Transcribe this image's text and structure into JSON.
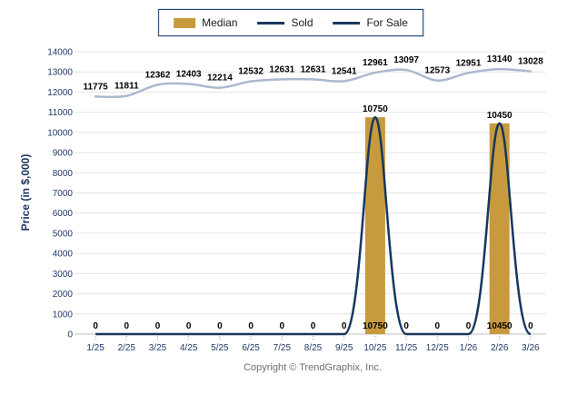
{
  "legend": {
    "items": [
      {
        "label": "Median",
        "swatch": "bar",
        "color": "#c79b3d"
      },
      {
        "label": "Sold",
        "swatch": "line",
        "color": "#17375e"
      },
      {
        "label": "For Sale",
        "swatch": "line",
        "color": "#adb8ce"
      }
    ]
  },
  "footer": {
    "copyright": "Copyright © TrendGraphix, Inc."
  },
  "chart_data": {
    "type": "combo",
    "categories": [
      "1/25",
      "2/25",
      "3/25",
      "4/25",
      "5/25",
      "6/25",
      "7/25",
      "8/25",
      "9/25",
      "10/25",
      "11/25",
      "12/25",
      "1/26",
      "2/26",
      "3/26"
    ],
    "series": [
      {
        "name": "Median",
        "type": "bar",
        "color": "#c79b3d",
        "label_position": "above-bar",
        "values": [
          0,
          0,
          0,
          0,
          0,
          0,
          0,
          0,
          0,
          10750,
          0,
          0,
          0,
          10450,
          0
        ]
      },
      {
        "name": "Sold",
        "type": "line",
        "color": "#17375e",
        "label_position": "axis",
        "values": [
          0,
          0,
          0,
          0,
          0,
          0,
          0,
          0,
          0,
          10750,
          0,
          0,
          0,
          10450,
          0
        ]
      },
      {
        "name": "For Sale",
        "type": "line",
        "color": "#adb8ce",
        "label_position": "above-point",
        "values": [
          11775,
          11811,
          12362,
          12403,
          12214,
          12532,
          12631,
          12631,
          12541,
          12961,
          13097,
          12573,
          12951,
          13140,
          13028
        ]
      }
    ],
    "title": "",
    "xlabel": "",
    "ylabel": "Price (in $,000)",
    "ylim": [
      0,
      14000
    ],
    "yticks": [
      0,
      1000,
      2000,
      3000,
      4000,
      5000,
      6000,
      7000,
      8000,
      9000,
      10000,
      11000,
      12000,
      13000,
      14000
    ],
    "grid": true,
    "legend_position": "top-center",
    "colors": {
      "grid_line": "#e4e4e4",
      "axis_line": "#c2c2c2",
      "tick_mark": "#8ca3c3",
      "axis_text": "#1f3864",
      "data_label": "#000000"
    }
  }
}
